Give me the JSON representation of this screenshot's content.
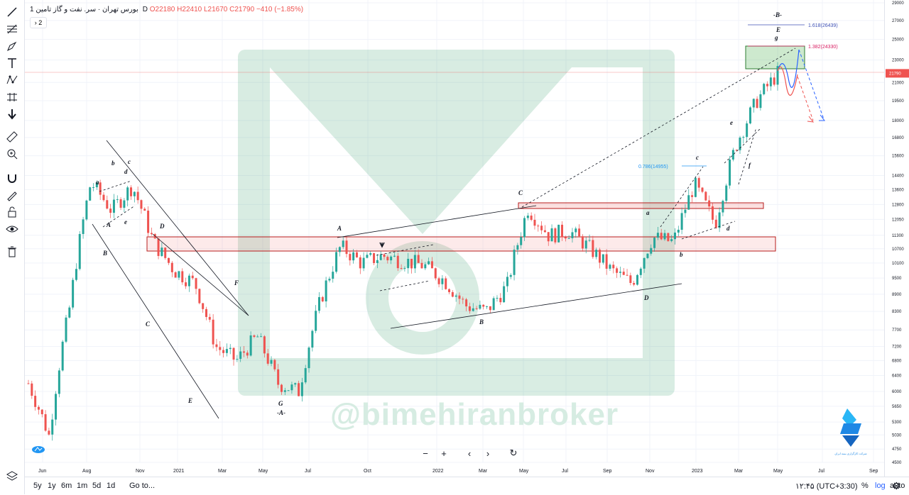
{
  "legend": {
    "symbol": "بورس تهران · سر. نفت و گاز تامین",
    "interval": "1D",
    "open": "O22180",
    "high": "H22410",
    "low": "L21670",
    "close": "C21790",
    "change": "−410 (−1.85%)",
    "collapse_label": "2"
  },
  "watermark": "@bimehiranbroker",
  "logo_text": "شرکت کارگزاری بیمه ایران",
  "colors": {
    "up": "#26a69a",
    "down": "#ef5350",
    "accent": "#2962ff"
  },
  "toolbar_icons": [
    "trend-line-icon",
    "fib-icon",
    "brush-icon",
    "text-icon",
    "pattern-icon",
    "measure-icon",
    "arrow-down-icon",
    "ruler-icon",
    "zoom-in-icon",
    "magnet-icon",
    "lock-pen-icon",
    "lock-icon",
    "eye-icon",
    "trash-icon",
    "layers-icon"
  ],
  "bottombar": {
    "ranges": [
      "5y",
      "1y",
      "6m",
      "1m",
      "5d",
      "1d"
    ],
    "goto": "Go to...",
    "time": "۱۲:۴۵ (UTC+3:30)",
    "percent": "%",
    "log": "log",
    "auto": "auto"
  },
  "price_tag": "21790",
  "chart_data": {
    "type": "candlestick",
    "y_scale": "log",
    "ylim": [
      4500,
      29000
    ],
    "y_ticks": [
      29000,
      27000,
      25000,
      23000,
      21000,
      19500,
      18000,
      16800,
      15600,
      14400,
      13600,
      12800,
      12050,
      11300,
      10700,
      10100,
      9500,
      8900,
      8300,
      7700,
      7200,
      6800,
      6400,
      6000,
      5650,
      5300,
      5030,
      4750,
      4500
    ],
    "x_ticks": [
      "Jun",
      "Aug",
      "Nov",
      "2021",
      "Mar",
      "May",
      "Jul",
      "Oct",
      "2022",
      "Mar",
      "May",
      "Jul",
      "Sep",
      "Nov",
      "2023",
      "Mar",
      "May",
      "Jul",
      "Sep"
    ],
    "last_price": 21790,
    "series": [
      {
        "name": "close",
        "x": [
          "2020-05",
          "2020-06",
          "2020-07",
          "2020-08",
          "2020-09",
          "2020-10",
          "2020-11",
          "2020-12",
          "2021-01",
          "2021-02",
          "2021-03",
          "2021-04",
          "2021-05",
          "2021-06",
          "2021-07",
          "2021-08",
          "2021-09",
          "2021-10",
          "2021-11",
          "2021-12",
          "2022-01",
          "2022-02",
          "2022-03",
          "2022-04",
          "2022-05",
          "2022-06",
          "2022-07",
          "2022-08",
          "2022-09",
          "2022-10",
          "2022-11",
          "2022-12",
          "2023-01",
          "2023-02",
          "2023-03",
          "2023-04",
          "2023-05"
        ],
        "values": [
          6200,
          5000,
          8500,
          14000,
          12500,
          13800,
          11000,
          9800,
          9300,
          7200,
          6800,
          7500,
          6200,
          6000,
          8600,
          10800,
          10100,
          10400,
          10200,
          10000,
          9400,
          8500,
          8300,
          9200,
          12600,
          11300,
          11500,
          10700,
          9800,
          9300,
          11200,
          11000,
          13900,
          11800,
          16300,
          19500,
          21790
        ]
      }
    ],
    "annotations": {
      "fib_levels": [
        {
          "label": "0.786(14955)",
          "value": 14955
        },
        {
          "label": "1.382(24330)",
          "value": 24330
        },
        {
          "label": "1.618(26439)",
          "value": 26439
        }
      ],
      "wave_labels": [
        "a",
        "b",
        "c",
        "d",
        "e",
        "B",
        "A",
        "C",
        "D",
        "E",
        "F",
        "G",
        "-A-",
        "A",
        "B",
        "C",
        "D",
        "a",
        "b",
        "c",
        "d",
        "e",
        "f",
        "g",
        "E",
        "-B-"
      ]
    }
  }
}
